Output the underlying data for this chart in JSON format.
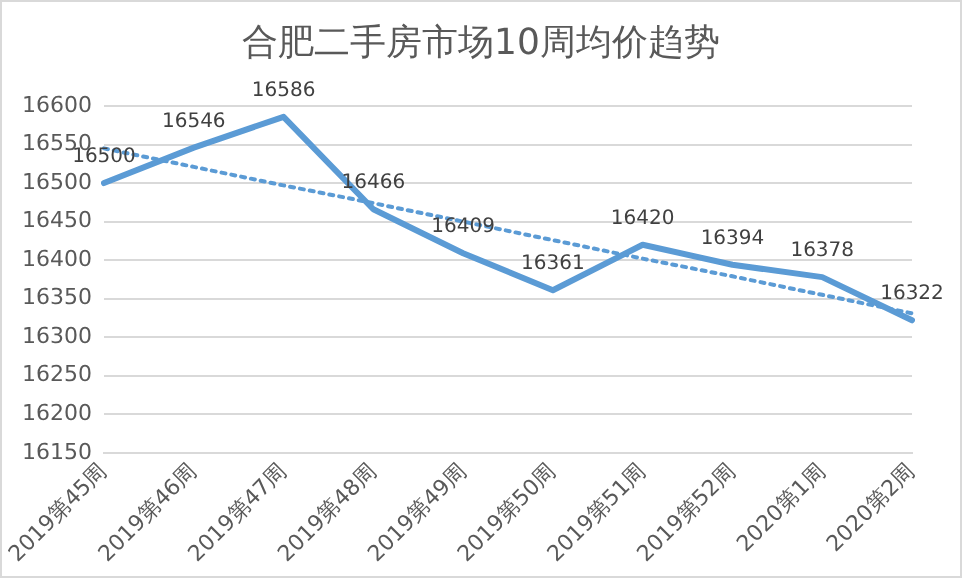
{
  "chart_data": {
    "type": "line",
    "title": "合肥二手房市场10周均价趋势",
    "categories": [
      "2019第45周",
      "2019第46周",
      "2019第47周",
      "2019第48周",
      "2019第49周",
      "2019第50周",
      "2019第51周",
      "2019第52周",
      "2020第1周",
      "2020第2周"
    ],
    "series": [
      {
        "color": "#5b9bd5",
        "values": [
          16500,
          16546,
          16586,
          16466,
          16409,
          16361,
          16420,
          16394,
          16378,
          16322
        ],
        "value_labels": [
          "16500",
          "16546",
          "16586",
          "16466",
          "16409",
          "16361",
          "16420",
          "16394",
          "16378",
          "16322"
        ],
        "line_style": "solid"
      },
      {
        "color": "#5b9bd5",
        "values": [
          16545,
          16521,
          16497,
          16474,
          16450,
          16426,
          16402,
          16379,
          16355,
          16331
        ],
        "line_style": "dotted"
      }
    ],
    "ylim": [
      16150,
      16600
    ],
    "yticks": [
      16150,
      16200,
      16250,
      16300,
      16350,
      16400,
      16450,
      16500,
      16550,
      16600
    ],
    "grid": "y",
    "legend": false,
    "marker": "none"
  }
}
